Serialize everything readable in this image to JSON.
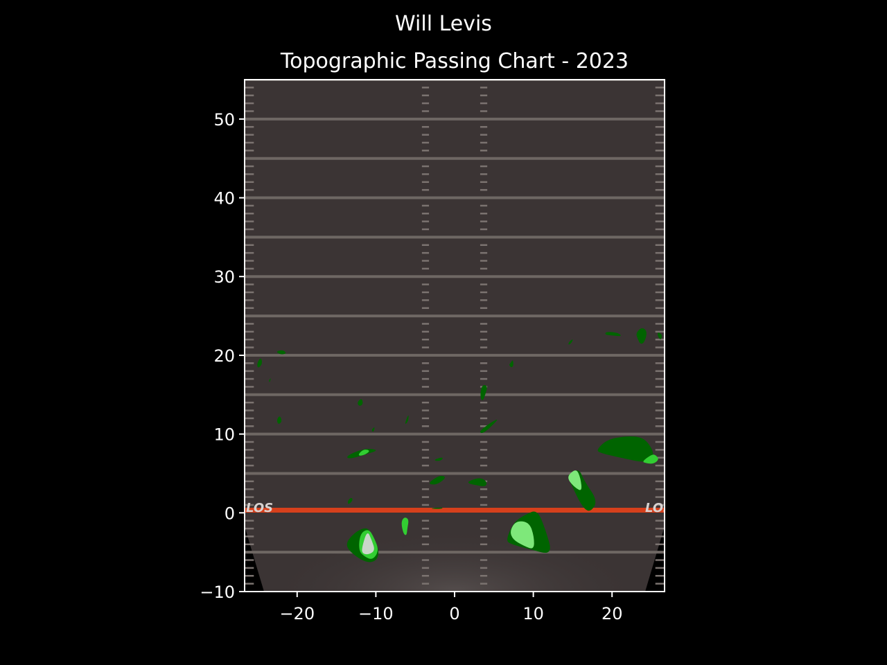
{
  "chart_data": {
    "type": "heatmap",
    "suptitle": "Will Levis",
    "title": "Topographic Passing Chart - 2023",
    "xlabel": "",
    "ylabel": "",
    "xlim": [
      -26.67,
      26.67
    ],
    "ylim": [
      -10,
      55
    ],
    "x_ticks": [
      -20,
      -10,
      0,
      10,
      20
    ],
    "x_tick_labels": [
      "−20",
      "−10",
      "0",
      "10",
      "20"
    ],
    "y_ticks": [
      -10,
      0,
      10,
      20,
      30,
      40,
      50
    ],
    "y_tick_labels": [
      "−10",
      "0",
      "10",
      "20",
      "30",
      "40",
      "50"
    ],
    "grid": false,
    "background": "football field",
    "los_label": "LOS",
    "colors": {
      "page_background": "#000000",
      "field": "#3b3434",
      "yard_line": "#6e6763",
      "line_of_scrimmage": "#d6401c",
      "level_1": "#006400",
      "level_2": "#32cd32",
      "level_3": "#7ee87a",
      "level_4": "#c9d6c9"
    },
    "contours": [
      {
        "level": 1,
        "points": [
          [
            -14,
            -4
          ],
          [
            -12.5,
            -2.3
          ],
          [
            -11,
            -1.8
          ],
          [
            -10.5,
            -3
          ],
          [
            -9.6,
            -4.5
          ],
          [
            -9.8,
            -6
          ],
          [
            -11,
            -6.4
          ],
          [
            -12.8,
            -5.4
          ]
        ]
      },
      {
        "level": 2,
        "points": [
          [
            -12.2,
            -4.8
          ],
          [
            -12,
            -2.6
          ],
          [
            -10.9,
            -2
          ],
          [
            -10.2,
            -3.2
          ],
          [
            -9.6,
            -4.8
          ],
          [
            -10.4,
            -6
          ],
          [
            -11.4,
            -5.6
          ]
        ]
      },
      {
        "level": 4,
        "points": [
          [
            -11.8,
            -4.5
          ],
          [
            -11.1,
            -2.2
          ],
          [
            -10.5,
            -3.5
          ],
          [
            -10.1,
            -4.8
          ],
          [
            -10.9,
            -5.3
          ],
          [
            -11.7,
            -5.2
          ]
        ]
      },
      {
        "level": 1,
        "points": [
          [
            6.5,
            -3.5
          ],
          [
            7.5,
            -1.2
          ],
          [
            9,
            -0.2
          ],
          [
            10.5,
            0.4
          ],
          [
            11.5,
            -2
          ],
          [
            12.5,
            -5.4
          ],
          [
            9.5,
            -4.6
          ],
          [
            7.2,
            -4
          ]
        ]
      },
      {
        "level": 3,
        "points": [
          [
            7,
            -2.3
          ],
          [
            7.8,
            -1
          ],
          [
            9.5,
            -1.2
          ],
          [
            10.1,
            -3
          ],
          [
            10.1,
            -4.7
          ],
          [
            8.8,
            -4.2
          ],
          [
            7.4,
            -3.4
          ]
        ]
      },
      {
        "level": 2,
        "points": [
          [
            -6.8,
            -1.2
          ],
          [
            -6.4,
            -0.5
          ],
          [
            -5.8,
            -0.8
          ],
          [
            -6,
            -2
          ],
          [
            -6.1,
            -2.9
          ],
          [
            -6.5,
            -2.7
          ]
        ]
      },
      {
        "level": 1,
        "points": [
          [
            15,
            5
          ],
          [
            15.8,
            5.6
          ],
          [
            16.5,
            4
          ],
          [
            18.2,
            1.5
          ],
          [
            17.2,
            0
          ],
          [
            16.2,
            0.8
          ],
          [
            15,
            3.2
          ],
          [
            14.3,
            4.8
          ]
        ]
      },
      {
        "level": 3,
        "points": [
          [
            14.5,
            4.9
          ],
          [
            15.5,
            5.6
          ],
          [
            16,
            4.4
          ],
          [
            16.2,
            2.7
          ],
          [
            15.3,
            3.2
          ],
          [
            14.4,
            4.2
          ]
        ]
      },
      {
        "level": 1,
        "points": [
          [
            18,
            8
          ],
          [
            19.5,
            9.4
          ],
          [
            22.5,
            9.8
          ],
          [
            24.3,
            9.4
          ],
          [
            25.5,
            7.3
          ],
          [
            24.5,
            6.3
          ],
          [
            21,
            7
          ],
          [
            18.5,
            7.6
          ]
        ]
      },
      {
        "level": 2,
        "points": [
          [
            23.8,
            6.5
          ],
          [
            25,
            7.4
          ],
          [
            25.5,
            7.4
          ],
          [
            26,
            6.8
          ],
          [
            25.3,
            6.2
          ],
          [
            24.3,
            6.3
          ]
        ]
      },
      {
        "level": 1,
        "points": [
          [
            23,
            22.8
          ],
          [
            23.8,
            23.6
          ],
          [
            24.5,
            23
          ],
          [
            24.1,
            21.6
          ],
          [
            23.6,
            21.4
          ],
          [
            23.3,
            22
          ]
        ]
      },
      {
        "level": 1,
        "points": [
          [
            19.2,
            23
          ],
          [
            20.7,
            22.9
          ],
          [
            21.3,
            22.4
          ],
          [
            20.2,
            22.5
          ],
          [
            19.1,
            22.6
          ]
        ]
      },
      {
        "level": 1,
        "points": [
          [
            25.8,
            23
          ],
          [
            26.4,
            22.6
          ],
          [
            26.2,
            21.9
          ],
          [
            25.8,
            22.4
          ]
        ]
      },
      {
        "level": 1,
        "points": [
          [
            14.8,
            21.5
          ],
          [
            15.1,
            22.1
          ],
          [
            14.6,
            21.8
          ],
          [
            14.4,
            21.3
          ]
        ]
      },
      {
        "level": 1,
        "points": [
          [
            -25.1,
            19
          ],
          [
            -24.6,
            19.8
          ],
          [
            -24.4,
            18.9
          ],
          [
            -25,
            18.3
          ]
        ]
      },
      {
        "level": 1,
        "points": [
          [
            -22.7,
            20.5
          ],
          [
            -21.8,
            20.7
          ],
          [
            -21.3,
            20.2
          ],
          [
            -22.2,
            20.1
          ]
        ]
      },
      {
        "level": 1,
        "points": [
          [
            -23.6,
            16.8
          ],
          [
            -23.3,
            17.2
          ],
          [
            -23.5,
            16.5
          ]
        ]
      },
      {
        "level": 1,
        "points": [
          [
            -22.6,
            11.8
          ],
          [
            -22.2,
            12.4
          ],
          [
            -21.9,
            11.6
          ],
          [
            -22.4,
            11.2
          ]
        ]
      },
      {
        "level": 1,
        "points": [
          [
            -12.4,
            14
          ],
          [
            -11.8,
            14.6
          ],
          [
            -11.6,
            13.8
          ],
          [
            -12.1,
            13.5
          ]
        ]
      },
      {
        "level": 1,
        "points": [
          [
            -10.6,
            10.5
          ],
          [
            -10.1,
            11
          ],
          [
            -10.3,
            10.2
          ]
        ]
      },
      {
        "level": 1,
        "points": [
          [
            -6.2,
            11.7
          ],
          [
            -5.8,
            12.6
          ],
          [
            -5.9,
            11.6
          ],
          [
            -6.3,
            11.2
          ]
        ]
      },
      {
        "level": 1,
        "points": [
          [
            -13.8,
            7.2
          ],
          [
            -11.5,
            8.2
          ],
          [
            -9.6,
            8
          ],
          [
            -11,
            7.5
          ],
          [
            -13.4,
            6.8
          ]
        ]
      },
      {
        "level": 2,
        "points": [
          [
            -12.2,
            7.5
          ],
          [
            -11.5,
            8.1
          ],
          [
            -10.7,
            7.9
          ],
          [
            -11.3,
            7.4
          ],
          [
            -12.1,
            7.2
          ]
        ]
      },
      {
        "level": 1,
        "points": [
          [
            -13.6,
            1.5
          ],
          [
            -13.1,
            2
          ],
          [
            -12.9,
            1.6
          ],
          [
            -13.5,
            1
          ]
        ]
      },
      {
        "level": 1,
        "points": [
          [
            -3.1,
            4
          ],
          [
            -1.8,
            4.8
          ],
          [
            -1,
            4.5
          ],
          [
            -2.2,
            3.6
          ],
          [
            -3.2,
            3.6
          ]
        ]
      },
      {
        "level": 1,
        "points": [
          [
            -2.5,
            6.8
          ],
          [
            -1.4,
            7.1
          ],
          [
            -1.7,
            6.6
          ],
          [
            -2.5,
            6.6
          ]
        ]
      },
      {
        "level": 1,
        "points": [
          [
            1.7,
            4
          ],
          [
            3.2,
            4.5
          ],
          [
            4.1,
            4
          ],
          [
            4,
            3.3
          ],
          [
            2.8,
            3.5
          ],
          [
            1.8,
            3.7
          ]
        ]
      },
      {
        "level": 1,
        "points": [
          [
            3.2,
            10.4
          ],
          [
            4.5,
            11.4
          ],
          [
            5.6,
            12
          ],
          [
            5,
            11.3
          ],
          [
            3.8,
            10.2
          ],
          [
            3.3,
            10.1
          ]
        ]
      },
      {
        "level": 1,
        "points": [
          [
            3.3,
            15.5
          ],
          [
            3.6,
            16.3
          ],
          [
            4.2,
            16.1
          ],
          [
            3.9,
            15
          ],
          [
            3.6,
            14.2
          ],
          [
            3.3,
            14.5
          ]
        ]
      },
      {
        "level": 1,
        "points": [
          [
            7.1,
            19
          ],
          [
            7.4,
            19.5
          ],
          [
            7.5,
            18.7
          ],
          [
            7.2,
            18.4
          ],
          [
            6.9,
            18.8
          ]
        ]
      },
      {
        "level": 1,
        "points": [
          [
            -2.9,
            0.6
          ],
          [
            -1.5,
            0.7
          ],
          [
            -1.6,
            0.5
          ],
          [
            -2.9,
            0.5
          ]
        ]
      }
    ]
  }
}
